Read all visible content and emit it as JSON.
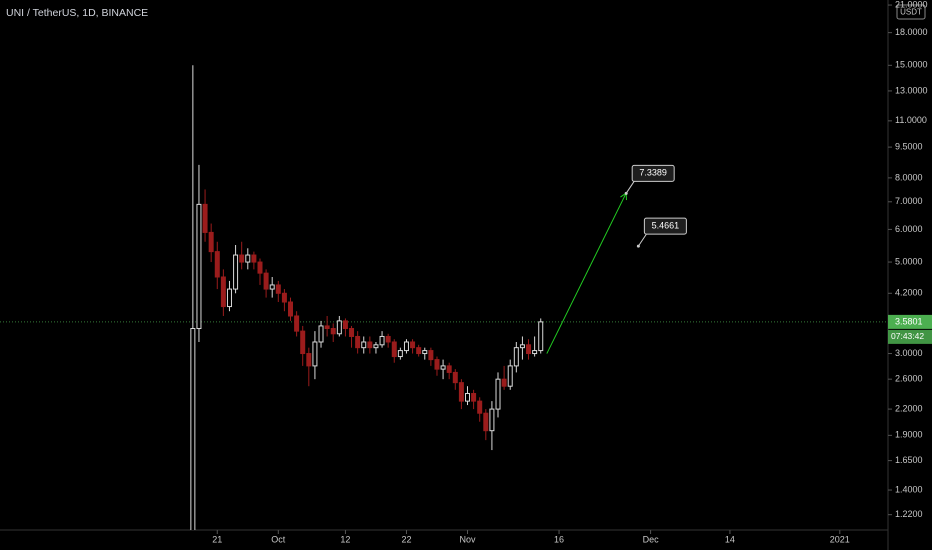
{
  "chart_data": {
    "type": "candlestick",
    "title": "UNI / TetherUS, 1D, BINANCE",
    "currency": "USDT",
    "log_scale": true,
    "x": [
      0,
      1,
      2,
      3,
      4,
      5,
      6,
      7,
      8,
      9,
      10,
      11,
      12,
      13,
      14,
      15,
      16,
      17,
      18,
      19,
      20,
      21,
      22,
      23,
      24,
      25,
      26,
      27,
      28,
      29,
      30,
      31,
      32,
      33,
      34,
      35,
      36,
      37,
      38,
      39,
      40,
      41,
      42,
      43,
      44,
      45,
      46,
      47,
      48,
      49,
      50,
      51,
      52,
      53,
      54,
      55,
      56,
      57
    ],
    "open": [
      1.1,
      3.45,
      6.9,
      5.9,
      5.3,
      4.6,
      3.9,
      4.3,
      5.2,
      5.0,
      5.2,
      5.0,
      4.7,
      4.3,
      4.4,
      4.2,
      4.0,
      3.7,
      3.4,
      3.0,
      2.8,
      3.2,
      3.5,
      3.45,
      3.35,
      3.6,
      3.45,
      3.3,
      3.1,
      3.2,
      3.1,
      3.15,
      3.3,
      3.2,
      2.95,
      3.05,
      3.2,
      3.1,
      3.0,
      3.05,
      2.9,
      2.75,
      2.8,
      2.7,
      2.55,
      2.3,
      2.4,
      2.3,
      2.15,
      1.95,
      2.2,
      2.6,
      2.5,
      2.8,
      3.1,
      3.15,
      3.0,
      3.05
    ],
    "high": [
      15.0,
      8.6,
      7.5,
      6.2,
      5.6,
      4.8,
      4.5,
      5.5,
      5.6,
      5.4,
      5.3,
      5.1,
      4.8,
      4.6,
      4.5,
      4.3,
      4.1,
      3.8,
      3.5,
      3.1,
      3.4,
      3.6,
      3.7,
      3.55,
      3.7,
      3.65,
      3.5,
      3.4,
      3.3,
      3.3,
      3.2,
      3.4,
      3.35,
      3.25,
      3.1,
      3.25,
      3.25,
      3.15,
      3.1,
      3.1,
      2.95,
      2.9,
      2.85,
      2.75,
      2.6,
      2.5,
      2.45,
      2.35,
      2.2,
      2.3,
      2.7,
      2.8,
      2.9,
      3.2,
      3.3,
      3.25,
      3.3,
      3.65
    ],
    "low": [
      1.05,
      3.2,
      5.6,
      5.0,
      4.3,
      3.7,
      3.8,
      4.2,
      4.8,
      4.8,
      4.8,
      4.4,
      4.1,
      4.1,
      4.0,
      3.8,
      3.6,
      3.3,
      2.8,
      2.5,
      2.6,
      3.1,
      3.3,
      3.2,
      3.3,
      3.3,
      3.1,
      3.0,
      3.0,
      3.0,
      3.0,
      3.1,
      3.1,
      2.85,
      2.9,
      3.0,
      3.0,
      2.95,
      2.9,
      2.8,
      2.65,
      2.6,
      2.6,
      2.45,
      2.2,
      2.25,
      2.2,
      2.05,
      1.85,
      1.75,
      2.1,
      2.45,
      2.45,
      2.7,
      2.9,
      2.9,
      2.95,
      3.0
    ],
    "close": [
      3.45,
      6.9,
      5.9,
      5.3,
      4.6,
      3.9,
      4.3,
      5.2,
      5.0,
      5.2,
      5.0,
      4.7,
      4.3,
      4.4,
      4.2,
      4.0,
      3.7,
      3.4,
      3.0,
      2.8,
      3.2,
      3.5,
      3.45,
      3.35,
      3.6,
      3.45,
      3.3,
      3.1,
      3.2,
      3.1,
      3.15,
      3.3,
      3.2,
      2.95,
      3.05,
      3.2,
      3.1,
      3.0,
      3.05,
      2.9,
      2.75,
      2.8,
      2.7,
      2.55,
      2.3,
      2.4,
      2.3,
      2.15,
      1.95,
      2.2,
      2.6,
      2.5,
      2.8,
      3.1,
      3.15,
      3.0,
      3.05,
      3.5801
    ],
    "up_color": "#d9d9d9",
    "down_color": "#9b1c1c",
    "last_price": 3.5801,
    "countdown": "07:43:42",
    "last_price_color": "#4caf50",
    "projection": {
      "x": [
        58,
        71
      ],
      "values": [
        3.0,
        7.35
      ],
      "color": "#22cc22"
    },
    "annotations": [
      {
        "x": 71,
        "value": 7.3389
      },
      {
        "x": 73,
        "value": 5.4661
      }
    ],
    "xlim": [
      -31.6,
      113.9
    ],
    "xticks": [
      {
        "value": 4,
        "label": "21"
      },
      {
        "value": 14,
        "label": "Oct"
      },
      {
        "value": 25,
        "label": "12"
      },
      {
        "value": 35,
        "label": "22"
      },
      {
        "value": 45,
        "label": "Nov"
      },
      {
        "value": 60,
        "label": "16"
      },
      {
        "value": 75,
        "label": "Dec"
      },
      {
        "value": 88,
        "label": "14"
      },
      {
        "value": 106,
        "label": "2021"
      }
    ],
    "ylim": [
      1.12,
      21.6
    ],
    "yticks": [
      {
        "value": 21,
        "label": "21.0000"
      },
      {
        "value": 18,
        "label": "18.0000"
      },
      {
        "value": 15,
        "label": "15.0000"
      },
      {
        "value": 13,
        "label": "13.0000"
      },
      {
        "value": 11,
        "label": "11.0000"
      },
      {
        "value": 9.5,
        "label": "9.5000"
      },
      {
        "value": 8,
        "label": "8.0000"
      },
      {
        "value": 7,
        "label": "7.0000"
      },
      {
        "value": 6,
        "label": "6.0000"
      },
      {
        "value": 5,
        "label": "5.0000"
      },
      {
        "value": 4.2,
        "label": "4.2000"
      },
      {
        "value": 3,
        "label": "3.0000"
      },
      {
        "value": 2.6,
        "label": "2.6000"
      },
      {
        "value": 2.2,
        "label": "2.2000"
      },
      {
        "value": 1.9,
        "label": "1.9000"
      },
      {
        "value": 1.65,
        "label": "1.6500"
      },
      {
        "value": 1.4,
        "label": "1.4000"
      },
      {
        "value": 1.22,
        "label": "1.2200"
      }
    ]
  }
}
